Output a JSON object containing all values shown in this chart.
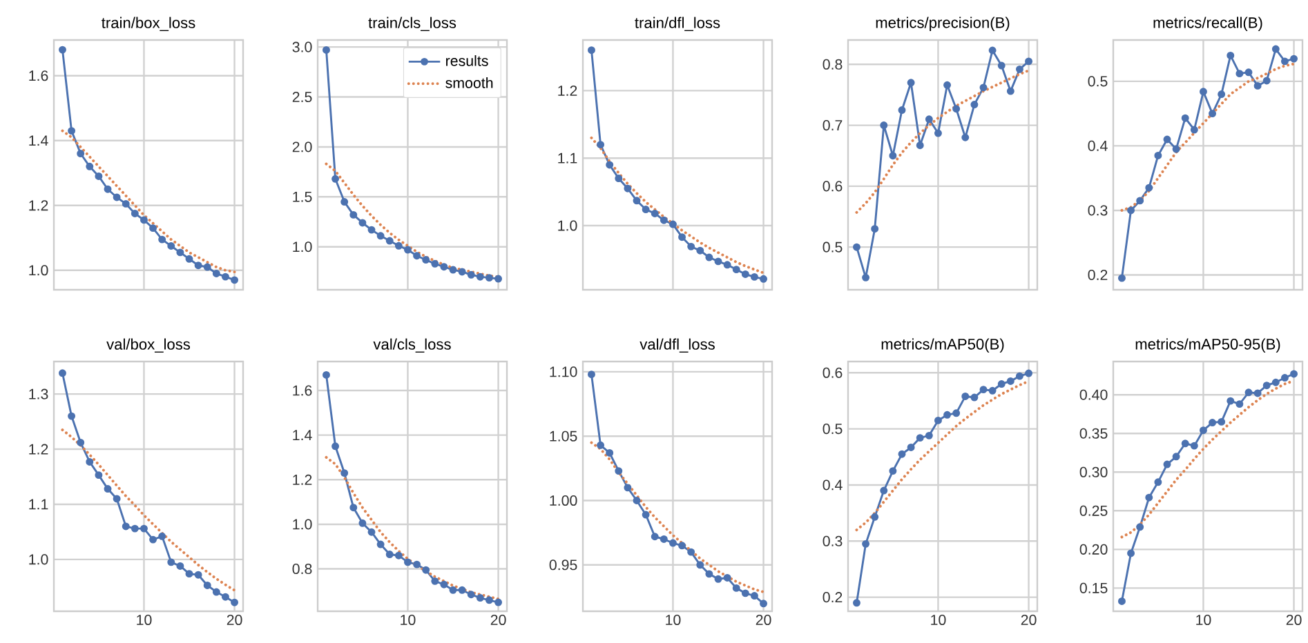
{
  "chart_data": [
    {
      "type": "line",
      "title": "train/box_loss",
      "x": [
        1,
        2,
        3,
        4,
        5,
        6,
        7,
        8,
        9,
        10,
        11,
        12,
        13,
        14,
        15,
        16,
        17,
        18,
        19,
        20
      ],
      "xlim": [
        0.05,
        20.95
      ],
      "xticks": [
        10,
        20
      ],
      "ylim": [
        0.94,
        1.71
      ],
      "yticks": [
        {
          "value": 1.0,
          "label": "1.0"
        },
        1.2,
        1.4,
        1.6
      ],
      "grid": true,
      "tick_labels": "y",
      "series": [
        {
          "color": "#4c72b0",
          "marker": "circle",
          "line_style": "solid",
          "values": [
            1.68,
            1.43,
            1.36,
            1.32,
            1.29,
            1.25,
            1.225,
            1.205,
            1.175,
            1.155,
            1.13,
            1.095,
            1.075,
            1.055,
            1.035,
            1.015,
            1.01,
            0.99,
            0.98,
            0.97
          ]
        },
        {
          "color": "#dd8452",
          "marker": "none",
          "line_style": "dotted",
          "values": [
            1.43,
            1.41,
            1.38,
            1.35,
            1.32,
            1.29,
            1.26,
            1.23,
            1.2,
            1.17,
            1.145,
            1.12,
            1.095,
            1.075,
            1.055,
            1.04,
            1.025,
            1.01,
            1.0,
            0.995
          ]
        }
      ]
    },
    {
      "type": "line",
      "title": "train/cls_loss",
      "x": [
        1,
        2,
        3,
        4,
        5,
        6,
        7,
        8,
        9,
        10,
        11,
        12,
        13,
        14,
        15,
        16,
        17,
        18,
        19,
        20
      ],
      "xlim": [
        0.05,
        20.95
      ],
      "xticks": [
        10,
        20
      ],
      "ylim": [
        0.57,
        3.07
      ],
      "yticks": [
        {
          "value": 1.0,
          "label": "1.0"
        },
        1.5,
        {
          "value": 2.0,
          "label": "2.0"
        },
        2.5,
        {
          "value": 3.0,
          "label": "3.0"
        }
      ],
      "grid": true,
      "tick_labels": "y",
      "legend": "top right",
      "series": [
        {
          "name": "results",
          "color": "#4c72b0",
          "marker": "circle",
          "line_style": "solid",
          "values": [
            2.97,
            1.68,
            1.45,
            1.32,
            1.24,
            1.17,
            1.11,
            1.06,
            1.01,
            0.97,
            0.91,
            0.87,
            0.83,
            0.8,
            0.77,
            0.75,
            0.72,
            0.7,
            0.69,
            0.68
          ]
        },
        {
          "name": "smooth",
          "color": "#dd8452",
          "marker": "none",
          "line_style": "dotted",
          "values": [
            1.83,
            1.76,
            1.64,
            1.52,
            1.41,
            1.31,
            1.22,
            1.14,
            1.07,
            1.01,
            0.95,
            0.9,
            0.86,
            0.82,
            0.79,
            0.77,
            0.75,
            0.73,
            0.71,
            0.7
          ]
        }
      ]
    },
    {
      "type": "line",
      "title": "train/dfl_loss",
      "x": [
        1,
        2,
        3,
        4,
        5,
        6,
        7,
        8,
        9,
        10,
        11,
        12,
        13,
        14,
        15,
        16,
        17,
        18,
        19,
        20
      ],
      "xlim": [
        0.05,
        20.95
      ],
      "xticks": [
        10,
        20
      ],
      "ylim": [
        0.905,
        1.275
      ],
      "yticks": [
        {
          "value": 1.0,
          "label": "1.0"
        },
        1.1,
        1.2
      ],
      "grid": true,
      "tick_labels": "y",
      "series": [
        {
          "color": "#4c72b0",
          "marker": "circle",
          "line_style": "solid",
          "values": [
            1.26,
            1.12,
            1.09,
            1.07,
            1.055,
            1.037,
            1.024,
            1.018,
            1.008,
            1.002,
            0.983,
            0.969,
            0.963,
            0.953,
            0.947,
            0.942,
            0.935,
            0.928,
            0.924,
            0.921
          ]
        },
        {
          "color": "#dd8452",
          "marker": "none",
          "line_style": "dotted",
          "values": [
            1.13,
            1.115,
            1.095,
            1.078,
            1.062,
            1.048,
            1.035,
            1.024,
            1.013,
            1.003,
            0.993,
            0.984,
            0.975,
            0.967,
            0.96,
            0.953,
            0.946,
            0.94,
            0.935,
            0.93
          ]
        }
      ]
    },
    {
      "type": "line",
      "title": "metrics/precision(B)",
      "x": [
        1,
        2,
        3,
        4,
        5,
        6,
        7,
        8,
        9,
        10,
        11,
        12,
        13,
        14,
        15,
        16,
        17,
        18,
        19,
        20
      ],
      "xlim": [
        0.05,
        20.95
      ],
      "xticks": [
        10,
        20
      ],
      "ylim": [
        0.43,
        0.84
      ],
      "yticks": [
        0.5,
        0.6,
        0.7,
        0.8
      ],
      "grid": true,
      "tick_labels": "y",
      "series": [
        {
          "color": "#4c72b0",
          "marker": "circle",
          "line_style": "solid",
          "values": [
            0.5,
            0.45,
            0.53,
            0.7,
            0.65,
            0.725,
            0.77,
            0.667,
            0.71,
            0.687,
            0.766,
            0.727,
            0.68,
            0.734,
            0.762,
            0.823,
            0.798,
            0.756,
            0.792,
            0.805
          ]
        },
        {
          "color": "#dd8452",
          "marker": "none",
          "line_style": "dotted",
          "values": [
            0.557,
            0.572,
            0.59,
            0.612,
            0.635,
            0.655,
            0.672,
            0.687,
            0.7,
            0.712,
            0.722,
            0.732,
            0.74,
            0.748,
            0.756,
            0.763,
            0.77,
            0.777,
            0.784,
            0.79
          ]
        }
      ]
    },
    {
      "type": "line",
      "title": "metrics/recall(B)",
      "x": [
        1,
        2,
        3,
        4,
        5,
        6,
        7,
        8,
        9,
        10,
        11,
        12,
        13,
        14,
        15,
        16,
        17,
        18,
        19,
        20
      ],
      "xlim": [
        0.05,
        20.95
      ],
      "xticks": [
        10,
        20
      ],
      "ylim": [
        0.177,
        0.564
      ],
      "yticks": [
        0.2,
        0.3,
        0.4,
        0.5
      ],
      "grid": true,
      "tick_labels": "y",
      "series": [
        {
          "color": "#4c72b0",
          "marker": "circle",
          "line_style": "solid",
          "values": [
            0.195,
            0.3,
            0.315,
            0.335,
            0.385,
            0.41,
            0.395,
            0.443,
            0.425,
            0.484,
            0.45,
            0.48,
            0.54,
            0.512,
            0.514,
            0.493,
            0.501,
            0.55,
            0.531,
            0.535
          ]
        },
        {
          "color": "#dd8452",
          "marker": "none",
          "line_style": "dotted",
          "values": [
            0.3,
            0.305,
            0.315,
            0.33,
            0.35,
            0.37,
            0.39,
            0.405,
            0.42,
            0.435,
            0.45,
            0.465,
            0.48,
            0.49,
            0.5,
            0.505,
            0.512,
            0.519,
            0.524,
            0.527
          ]
        }
      ]
    },
    {
      "type": "line",
      "title": "val/box_loss",
      "x": [
        1,
        2,
        3,
        4,
        5,
        6,
        7,
        8,
        9,
        10,
        11,
        12,
        13,
        14,
        15,
        16,
        17,
        18,
        19,
        20
      ],
      "xlim": [
        0.05,
        20.95
      ],
      "xticks": [
        10,
        20
      ],
      "ylim": [
        0.906,
        1.359
      ],
      "yticks": [
        {
          "value": 1.0,
          "label": "1.0"
        },
        1.1,
        1.2,
        1.3
      ],
      "grid": true,
      "series": [
        {
          "color": "#4c72b0",
          "marker": "circle",
          "line_style": "solid",
          "values": [
            1.338,
            1.26,
            1.212,
            1.177,
            1.153,
            1.128,
            1.11,
            1.06,
            1.056,
            1.056,
            1.036,
            1.042,
            0.995,
            0.988,
            0.974,
            0.972,
            0.953,
            0.941,
            0.932,
            0.922
          ]
        },
        {
          "color": "#dd8452",
          "marker": "none",
          "line_style": "dotted",
          "values": [
            1.235,
            1.222,
            1.207,
            1.19,
            1.172,
            1.153,
            1.134,
            1.115,
            1.098,
            1.08,
            1.064,
            1.048,
            1.032,
            1.018,
            1.004,
            0.99,
            0.977,
            0.965,
            0.954,
            0.944
          ]
        }
      ]
    },
    {
      "type": "line",
      "title": "val/cls_loss",
      "x": [
        1,
        2,
        3,
        4,
        5,
        6,
        7,
        8,
        9,
        10,
        11,
        12,
        13,
        14,
        15,
        16,
        17,
        18,
        19,
        20
      ],
      "xlim": [
        0.05,
        20.95
      ],
      "xticks": [
        10,
        20
      ],
      "ylim": [
        0.61,
        1.73
      ],
      "yticks": [
        0.8,
        {
          "value": 1.0,
          "label": "1.0"
        },
        1.2,
        1.4,
        1.6
      ],
      "grid": true,
      "series": [
        {
          "color": "#4c72b0",
          "marker": "circle",
          "line_style": "solid",
          "values": [
            1.67,
            1.35,
            1.23,
            1.075,
            1.005,
            0.965,
            0.91,
            0.865,
            0.86,
            0.83,
            0.82,
            0.795,
            0.745,
            0.73,
            0.705,
            0.705,
            0.685,
            0.67,
            0.66,
            0.65
          ]
        },
        {
          "color": "#dd8452",
          "marker": "none",
          "line_style": "dotted",
          "values": [
            1.3,
            1.27,
            1.21,
            1.14,
            1.075,
            1.02,
            0.965,
            0.92,
            0.88,
            0.845,
            0.815,
            0.79,
            0.765,
            0.745,
            0.725,
            0.71,
            0.695,
            0.685,
            0.675,
            0.665
          ]
        }
      ]
    },
    {
      "type": "line",
      "title": "val/dfl_loss",
      "x": [
        1,
        2,
        3,
        4,
        5,
        6,
        7,
        8,
        9,
        10,
        11,
        12,
        13,
        14,
        15,
        16,
        17,
        18,
        19,
        20
      ],
      "xlim": [
        0.05,
        20.95
      ],
      "xticks": [
        10,
        20
      ],
      "ylim": [
        0.914,
        1.108
      ],
      "yticks": [
        {
          "value": 0.95,
          "label": "0.95"
        },
        {
          "value": 1.0,
          "label": "1.00"
        },
        {
          "value": 1.05,
          "label": "1.05"
        },
        {
          "value": 1.1,
          "label": "1.10"
        }
      ],
      "grid": true,
      "series": [
        {
          "color": "#4c72b0",
          "marker": "circle",
          "line_style": "solid",
          "values": [
            1.098,
            1.043,
            1.037,
            1.023,
            1.01,
            1.0,
            0.989,
            0.972,
            0.97,
            0.967,
            0.965,
            0.96,
            0.95,
            0.943,
            0.939,
            0.94,
            0.932,
            0.928,
            0.926,
            0.92
          ]
        },
        {
          "color": "#dd8452",
          "marker": "none",
          "line_style": "dotted",
          "values": [
            1.045,
            1.04,
            1.032,
            1.022,
            1.013,
            1.004,
            0.995,
            0.987,
            0.98,
            0.973,
            0.967,
            0.961,
            0.955,
            0.95,
            0.945,
            0.941,
            0.937,
            0.934,
            0.931,
            0.929
          ]
        }
      ]
    },
    {
      "type": "line",
      "title": "metrics/mAP50(B)",
      "x": [
        1,
        2,
        3,
        4,
        5,
        6,
        7,
        8,
        9,
        10,
        11,
        12,
        13,
        14,
        15,
        16,
        17,
        18,
        19,
        20
      ],
      "xlim": [
        0.05,
        20.95
      ],
      "xticks": [
        10,
        20
      ],
      "ylim": [
        0.175,
        0.62
      ],
      "yticks": [
        0.2,
        0.3,
        0.4,
        0.5,
        0.6
      ],
      "grid": true,
      "series": [
        {
          "color": "#4c72b0",
          "marker": "circle",
          "line_style": "solid",
          "values": [
            0.19,
            0.295,
            0.343,
            0.39,
            0.425,
            0.455,
            0.467,
            0.484,
            0.488,
            0.515,
            0.525,
            0.528,
            0.558,
            0.556,
            0.57,
            0.568,
            0.58,
            0.585,
            0.594,
            0.599
          ]
        },
        {
          "color": "#dd8452",
          "marker": "none",
          "line_style": "dotted",
          "values": [
            0.32,
            0.333,
            0.35,
            0.37,
            0.39,
            0.41,
            0.428,
            0.445,
            0.46,
            0.475,
            0.49,
            0.505,
            0.518,
            0.53,
            0.542,
            0.552,
            0.562,
            0.57,
            0.578,
            0.585
          ]
        }
      ]
    },
    {
      "type": "line",
      "title": "metrics/mAP50-95(B)",
      "x": [
        1,
        2,
        3,
        4,
        5,
        6,
        7,
        8,
        9,
        10,
        11,
        12,
        13,
        14,
        15,
        16,
        17,
        18,
        19,
        20
      ],
      "xlim": [
        0.05,
        20.95
      ],
      "xticks": [
        10,
        20
      ],
      "ylim": [
        0.12,
        0.443
      ],
      "yticks": [
        {
          "value": 0.15,
          "label": "0.15"
        },
        {
          "value": 0.2,
          "label": "0.20"
        },
        {
          "value": 0.25,
          "label": "0.25"
        },
        {
          "value": 0.3,
          "label": "0.30"
        },
        {
          "value": 0.35,
          "label": "0.35"
        },
        {
          "value": 0.4,
          "label": "0.40"
        }
      ],
      "grid": true,
      "series": [
        {
          "color": "#4c72b0",
          "marker": "circle",
          "line_style": "solid",
          "values": [
            0.133,
            0.195,
            0.229,
            0.267,
            0.287,
            0.31,
            0.32,
            0.337,
            0.334,
            0.354,
            0.364,
            0.365,
            0.392,
            0.388,
            0.403,
            0.402,
            0.412,
            0.416,
            0.422,
            0.427
          ]
        },
        {
          "color": "#dd8452",
          "marker": "none",
          "line_style": "dotted",
          "values": [
            0.216,
            0.222,
            0.232,
            0.245,
            0.26,
            0.275,
            0.29,
            0.303,
            0.317,
            0.33,
            0.342,
            0.353,
            0.364,
            0.374,
            0.384,
            0.393,
            0.401,
            0.408,
            0.414,
            0.418
          ]
        }
      ]
    }
  ]
}
